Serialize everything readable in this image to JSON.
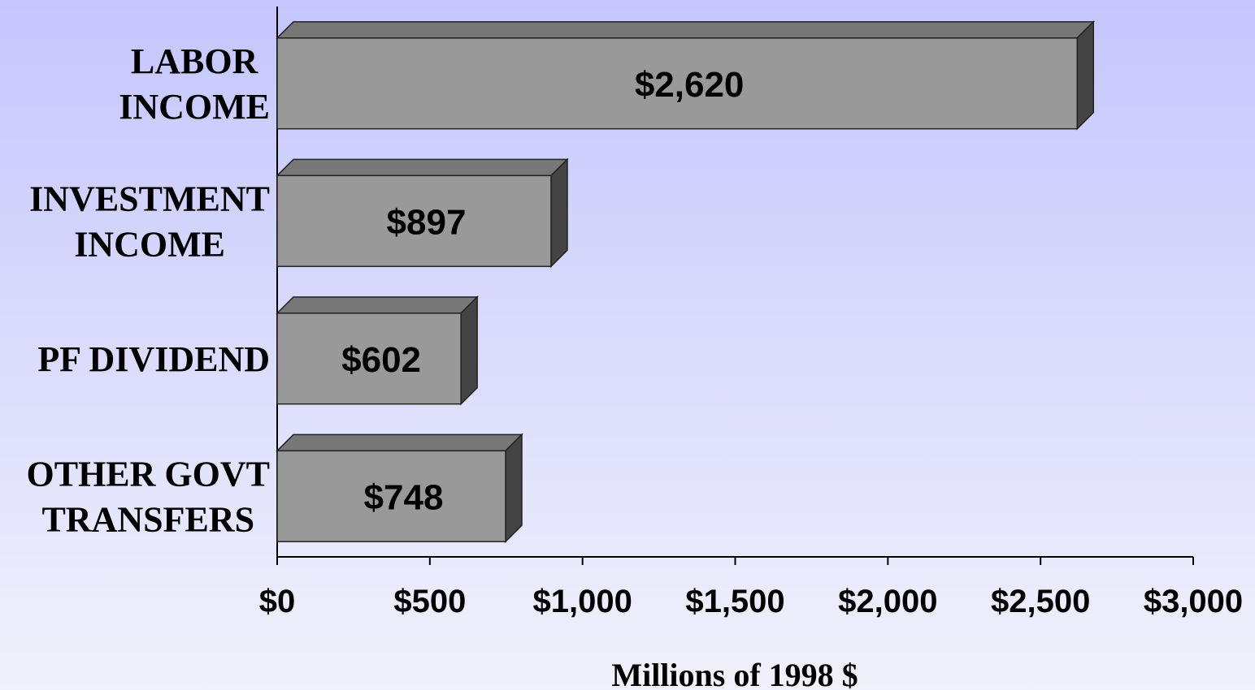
{
  "chart_data": {
    "type": "bar3d_horizontal",
    "categories": [
      "LABOR\nINCOME",
      "INVESTMENT\nINCOME",
      "PF DIVIDEND",
      "OTHER GOVT\nTRANSFERS"
    ],
    "values": [
      2620,
      897,
      602,
      748
    ],
    "value_labels": [
      "$2,620",
      "$897",
      "$602",
      "$748"
    ],
    "color": "#999999",
    "xlim": [
      0,
      3000
    ],
    "xticks": [
      {
        "value": 0,
        "label": "$0"
      },
      {
        "value": 500,
        "label": "$500"
      },
      {
        "value": 1000,
        "label": "$1,000"
      },
      {
        "value": 1500,
        "label": "$1,500"
      },
      {
        "value": 2000,
        "label": "$2,000"
      },
      {
        "value": 2500,
        "label": "$2,500"
      },
      {
        "value": 3000,
        "label": "$3,000"
      }
    ],
    "xlabel": "Millions of 1998 $"
  }
}
